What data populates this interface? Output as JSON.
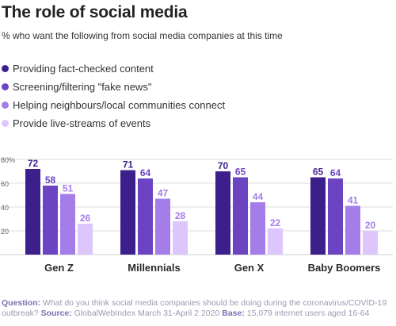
{
  "title": "The role of social media",
  "subtitle": "% who want the following from social media companies at this time",
  "footnote": {
    "question_label": "Question:",
    "question_text": "What do you think social media companies should be doing during the coronavirus/COVID-19 outbreak?",
    "source_label": "Source:",
    "source_text": "GlobalWebIndex March 31-April 2 2020",
    "base_label": "Base:",
    "base_text": "15,079 internet users aged 16-64"
  },
  "colors": [
    "#3d1f8c",
    "#6c44c2",
    "#a57de8",
    "#dcc6fb"
  ],
  "chart_data": {
    "type": "bar",
    "title": "The role of social media",
    "categories": [
      "Gen Z",
      "Millennials",
      "Gen X",
      "Baby Boomers"
    ],
    "series": [
      {
        "name": "Providing fact-checked content",
        "values": [
          72,
          71,
          70,
          65
        ]
      },
      {
        "name": "Screening/filtering \"fake news\"",
        "values": [
          58,
          64,
          65,
          64
        ]
      },
      {
        "name": "Helping neighbours/local communities connect",
        "values": [
          51,
          47,
          44,
          41
        ]
      },
      {
        "name": "Provide live-streams of events",
        "values": [
          26,
          28,
          22,
          20
        ]
      }
    ],
    "yticks": [
      "20",
      "40",
      "60",
      "80%"
    ],
    "ylim": [
      0,
      82
    ],
    "legend": "top-left",
    "grid": true
  }
}
